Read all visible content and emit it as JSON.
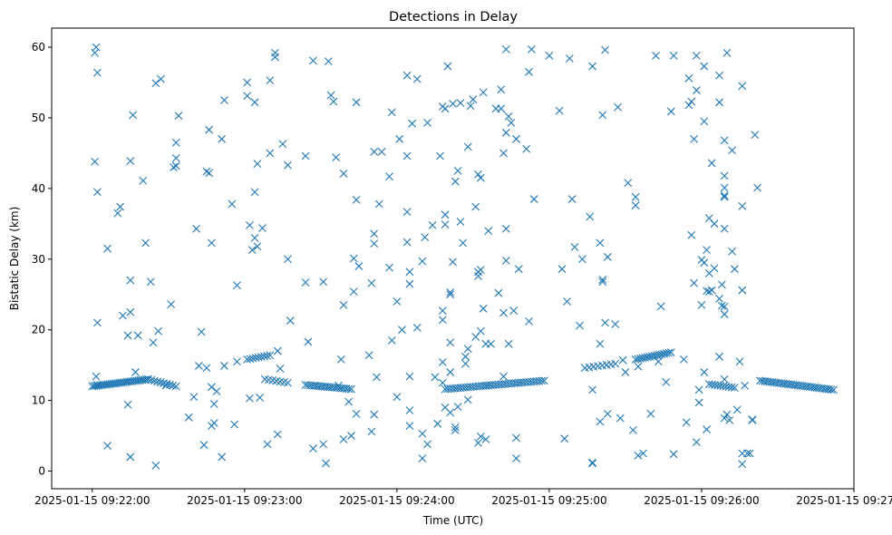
{
  "chart_data": {
    "type": "scatter",
    "title": "Detections in Delay",
    "xlabel": "Time (UTC)",
    "ylabel": "Bistatic Delay (km)",
    "marker": "x",
    "color": "#1f77b4",
    "xlim_seconds": [
      -16,
      300
    ],
    "ylim": [
      -2.5,
      62.7
    ],
    "x_ticks": [
      {
        "value": 0,
        "label": "2025-01-15 09:22:00"
      },
      {
        "value": 60,
        "label": "2025-01-15 09:23:00"
      },
      {
        "value": 120,
        "label": "2025-01-15 09:24:00"
      },
      {
        "value": 180,
        "label": "2025-01-15 09:25:00"
      },
      {
        "value": 240,
        "label": "2025-01-15 09:26:00"
      },
      {
        "value": 300,
        "label": "2025-01-15 09:27:00"
      }
    ],
    "y_ticks": [
      {
        "value": 0,
        "label": "0"
      },
      {
        "value": 10,
        "label": "10"
      },
      {
        "value": 20,
        "label": "20"
      },
      {
        "value": 30,
        "label": "30"
      },
      {
        "value": 40,
        "label": "40"
      },
      {
        "value": 50,
        "label": "50"
      },
      {
        "value": 60,
        "label": "60"
      }
    ],
    "x_unit": "seconds after 2025-01-15 09:22:00 UTC",
    "tracks": [
      {
        "name": "track-1",
        "t_start": 0,
        "t_end": 22,
        "y_start": 12.0,
        "y_end": 13.0,
        "count": 30
      },
      {
        "name": "track-2",
        "t_start": 22,
        "t_end": 33,
        "y_start": 13.0,
        "y_end": 12.0,
        "count": 10
      },
      {
        "name": "track-3",
        "t_start": 61,
        "t_end": 70,
        "y_start": 15.8,
        "y_end": 16.4,
        "count": 9
      },
      {
        "name": "track-4",
        "t_start": 68,
        "t_end": 77,
        "y_start": 13.0,
        "y_end": 12.5,
        "count": 7
      },
      {
        "name": "track-5",
        "t_start": 84,
        "t_end": 102,
        "y_start": 12.2,
        "y_end": 11.6,
        "count": 20
      },
      {
        "name": "track-6",
        "t_start": 139,
        "t_end": 178,
        "y_start": 11.6,
        "y_end": 12.8,
        "count": 40
      },
      {
        "name": "track-7",
        "t_start": 194,
        "t_end": 206,
        "y_start": 14.6,
        "y_end": 15.2,
        "count": 8
      },
      {
        "name": "track-8",
        "t_start": 214,
        "t_end": 228,
        "y_start": 15.8,
        "y_end": 16.8,
        "count": 16
      },
      {
        "name": "track-9",
        "t_start": 243,
        "t_end": 253,
        "y_start": 12.3,
        "y_end": 11.8,
        "count": 10
      },
      {
        "name": "track-10",
        "t_start": 263,
        "t_end": 292,
        "y_start": 12.8,
        "y_end": 11.5,
        "count": 32
      }
    ],
    "points": [
      [
        1,
        59.2
      ],
      [
        1.5,
        60
      ],
      [
        2,
        56.4
      ],
      [
        1,
        43.8
      ],
      [
        2,
        39.5
      ],
      [
        2,
        21
      ],
      [
        1.5,
        13.4
      ],
      [
        2,
        12.2
      ],
      [
        6,
        31.5
      ],
      [
        6,
        3.6
      ],
      [
        10,
        36.5
      ],
      [
        11,
        37.4
      ],
      [
        12,
        22
      ],
      [
        14,
        19.2
      ],
      [
        15,
        22.5
      ],
      [
        15,
        27
      ],
      [
        15,
        43.9
      ],
      [
        16,
        50.4
      ],
      [
        15,
        2
      ],
      [
        14,
        9.4
      ],
      [
        17,
        14
      ],
      [
        18,
        19.2
      ],
      [
        20,
        41.1
      ],
      [
        21,
        32.3
      ],
      [
        23,
        26.8
      ],
      [
        24,
        18.2
      ],
      [
        25,
        0.8
      ],
      [
        25,
        54.9
      ],
      [
        26,
        19.8
      ],
      [
        27,
        55.5
      ],
      [
        29,
        12.1
      ],
      [
        31,
        23.6
      ],
      [
        32,
        43
      ],
      [
        33,
        43.2
      ],
      [
        33,
        44.3
      ],
      [
        33,
        46.5
      ],
      [
        34,
        50.3
      ],
      [
        38,
        7.6
      ],
      [
        40,
        10.5
      ],
      [
        41,
        34.3
      ],
      [
        42,
        14.9
      ],
      [
        43,
        19.7
      ],
      [
        44,
        3.7
      ],
      [
        45,
        14.6
      ],
      [
        45,
        42.4
      ],
      [
        46,
        48.3
      ],
      [
        46,
        42.2
      ],
      [
        47,
        11.9
      ],
      [
        47,
        32.3
      ],
      [
        47,
        6.4
      ],
      [
        48,
        6.8
      ],
      [
        48,
        9.5
      ],
      [
        49,
        11.3
      ],
      [
        51,
        47
      ],
      [
        51,
        2
      ],
      [
        52,
        52.5
      ],
      [
        52,
        14.9
      ],
      [
        55,
        37.8
      ],
      [
        56,
        6.6
      ],
      [
        57,
        26.3
      ],
      [
        57,
        15.5
      ],
      [
        61,
        55
      ],
      [
        61,
        53.1
      ],
      [
        62,
        34.8
      ],
      [
        62,
        10.3
      ],
      [
        63,
        31.3
      ],
      [
        64,
        52.2
      ],
      [
        64,
        33
      ],
      [
        64,
        39.5
      ],
      [
        65,
        43.5
      ],
      [
        65,
        31.8
      ],
      [
        66,
        10.4
      ],
      [
        67,
        34.4
      ],
      [
        69,
        3.8
      ],
      [
        70,
        55.3
      ],
      [
        70,
        45
      ],
      [
        72,
        58.6
      ],
      [
        72,
        59.2
      ],
      [
        73,
        5.2
      ],
      [
        73,
        17
      ],
      [
        74,
        14.5
      ],
      [
        75,
        46.3
      ],
      [
        77,
        43.3
      ],
      [
        77,
        30
      ],
      [
        78,
        21.3
      ],
      [
        84,
        44.6
      ],
      [
        84,
        26.7
      ],
      [
        85,
        18.3
      ],
      [
        87,
        58.1
      ],
      [
        87,
        3.2
      ],
      [
        91,
        26.8
      ],
      [
        91,
        3.8
      ],
      [
        92,
        1.1
      ],
      [
        93,
        58
      ],
      [
        94,
        53.2
      ],
      [
        95,
        52.3
      ],
      [
        96,
        44.4
      ],
      [
        97,
        12.1
      ],
      [
        98,
        15.8
      ],
      [
        99,
        23.5
      ],
      [
        99,
        42.1
      ],
      [
        99,
        4.5
      ],
      [
        101,
        9.8
      ],
      [
        102,
        5
      ],
      [
        103,
        30.1
      ],
      [
        103,
        25.4
      ],
      [
        104,
        8.1
      ],
      [
        104,
        52.2
      ],
      [
        104,
        38.4
      ],
      [
        105,
        29
      ],
      [
        109,
        16.4
      ],
      [
        110,
        26.6
      ],
      [
        110,
        5.6
      ],
      [
        111,
        45.2
      ],
      [
        111,
        33.6
      ],
      [
        111,
        8
      ],
      [
        111,
        32.2
      ],
      [
        112,
        13.3
      ],
      [
        113,
        37.8
      ],
      [
        114,
        45.2
      ],
      [
        117,
        41.7
      ],
      [
        117,
        28.8
      ],
      [
        118,
        50.8
      ],
      [
        118,
        18.5
      ],
      [
        120,
        10.5
      ],
      [
        120,
        24
      ],
      [
        121,
        47
      ],
      [
        122,
        20
      ],
      [
        124,
        56
      ],
      [
        124,
        36.7
      ],
      [
        124,
        32.4
      ],
      [
        124,
        44.6
      ],
      [
        125,
        28.2
      ],
      [
        125,
        6.4
      ],
      [
        125,
        26.5
      ],
      [
        125,
        8.6
      ],
      [
        125,
        13.4
      ],
      [
        126,
        49.2
      ],
      [
        128,
        55.5
      ],
      [
        128,
        20.3
      ],
      [
        130,
        29.7
      ],
      [
        130,
        5.3
      ],
      [
        130,
        1.8
      ],
      [
        131,
        33.1
      ],
      [
        132,
        49.3
      ],
      [
        132,
        3.8
      ],
      [
        134,
        34.8
      ],
      [
        135,
        13.3
      ],
      [
        136,
        6.7
      ],
      [
        137,
        44.6
      ],
      [
        138,
        51.6
      ],
      [
        138,
        21.4
      ],
      [
        138,
        22.7
      ],
      [
        138,
        15.4
      ],
      [
        138,
        12.5
      ],
      [
        139,
        9
      ],
      [
        139,
        34.9
      ],
      [
        139,
        36.3
      ],
      [
        139,
        51.3
      ],
      [
        140,
        57.3
      ],
      [
        141,
        25.3
      ],
      [
        141,
        25
      ],
      [
        141,
        14
      ],
      [
        141,
        18.2
      ],
      [
        141,
        8.3
      ],
      [
        142,
        52
      ],
      [
        142,
        29.6
      ],
      [
        143,
        6.2
      ],
      [
        143,
        5.8
      ],
      [
        143,
        41
      ],
      [
        144,
        42.5
      ],
      [
        144,
        9.1
      ],
      [
        145,
        35.3
      ],
      [
        145,
        52.1
      ],
      [
        146,
        32.3
      ],
      [
        147,
        15.2
      ],
      [
        147,
        16.2
      ],
      [
        148,
        17.3
      ],
      [
        148,
        45.9
      ],
      [
        148,
        10.1
      ],
      [
        149,
        51.7
      ],
      [
        150,
        52.6
      ],
      [
        151,
        37.4
      ],
      [
        151,
        19
      ],
      [
        152,
        42
      ],
      [
        152,
        28.2
      ],
      [
        152,
        27.6
      ],
      [
        152,
        4
      ],
      [
        153,
        41.5
      ],
      [
        153,
        28.5
      ],
      [
        153,
        4.9
      ],
      [
        153,
        19.8
      ],
      [
        154,
        53.6
      ],
      [
        154,
        23
      ],
      [
        155,
        12.1
      ],
      [
        155,
        4.5
      ],
      [
        155,
        18
      ],
      [
        156,
        34
      ],
      [
        157,
        18
      ],
      [
        159,
        51.3
      ],
      [
        160,
        25.2
      ],
      [
        161,
        54
      ],
      [
        161,
        51.3
      ],
      [
        162,
        22.4
      ],
      [
        162,
        45
      ],
      [
        162,
        13.4
      ],
      [
        163,
        59.7
      ],
      [
        163,
        47.9
      ],
      [
        163,
        34.3
      ],
      [
        163,
        29.8
      ],
      [
        164,
        50.2
      ],
      [
        164,
        18
      ],
      [
        165,
        49.3
      ],
      [
        166,
        22.7
      ],
      [
        167,
        47
      ],
      [
        167,
        4.7
      ],
      [
        167,
        1.8
      ],
      [
        168,
        28.6
      ],
      [
        171,
        45.6
      ],
      [
        172,
        56.5
      ],
      [
        172,
        21.2
      ],
      [
        173,
        59.7
      ],
      [
        174,
        38.5
      ],
      [
        180,
        58.8
      ],
      [
        184,
        51
      ],
      [
        185,
        28.6
      ],
      [
        186,
        4.6
      ],
      [
        187,
        24
      ],
      [
        188,
        58.4
      ],
      [
        189,
        38.5
      ],
      [
        190,
        31.7
      ],
      [
        192,
        20.6
      ],
      [
        193,
        30
      ],
      [
        196,
        36
      ],
      [
        197,
        57.3
      ],
      [
        197,
        11.5
      ],
      [
        197,
        1.2
      ],
      [
        197,
        1.1
      ],
      [
        200,
        32.3
      ],
      [
        200,
        18
      ],
      [
        200,
        7
      ],
      [
        201,
        50.4
      ],
      [
        201,
        26.8
      ],
      [
        201,
        27.1
      ],
      [
        202,
        59.6
      ],
      [
        202,
        21
      ],
      [
        203,
        30.3
      ],
      [
        203,
        8.1
      ],
      [
        206,
        20.8
      ],
      [
        207,
        51.5
      ],
      [
        208,
        7.5
      ],
      [
        209,
        15.7
      ],
      [
        210,
        14
      ],
      [
        211,
        40.8
      ],
      [
        213,
        5.8
      ],
      [
        214,
        38.8
      ],
      [
        214,
        37.6
      ],
      [
        215,
        14.8
      ],
      [
        215,
        2.2
      ],
      [
        217,
        2.5
      ],
      [
        220,
        8.1
      ],
      [
        222,
        58.8
      ],
      [
        223,
        15.5
      ],
      [
        224,
        23.3
      ],
      [
        226,
        12.6
      ],
      [
        228,
        50.9
      ],
      [
        229,
        58.8
      ],
      [
        229,
        2.4
      ],
      [
        233,
        15.8
      ],
      [
        234,
        6.9
      ],
      [
        235,
        51.8
      ],
      [
        235,
        55.6
      ],
      [
        236,
        33.4
      ],
      [
        236,
        52.3
      ],
      [
        237,
        47
      ],
      [
        237,
        26.6
      ],
      [
        238,
        53.9
      ],
      [
        238,
        58.8
      ],
      [
        238,
        4.1
      ],
      [
        239,
        9.7
      ],
      [
        239,
        11.5
      ],
      [
        240,
        23.5
      ],
      [
        240,
        29.9
      ],
      [
        241,
        49.5
      ],
      [
        241,
        57.3
      ],
      [
        241,
        29.5
      ],
      [
        241,
        14
      ],
      [
        242,
        25.5
      ],
      [
        242,
        31.3
      ],
      [
        242,
        5.9
      ],
      [
        243,
        35.8
      ],
      [
        243,
        28
      ],
      [
        243,
        25.4
      ],
      [
        244,
        43.6
      ],
      [
        244,
        25.6
      ],
      [
        245,
        35
      ],
      [
        245,
        28.7
      ],
      [
        247,
        56
      ],
      [
        247,
        52.2
      ],
      [
        247,
        24.4
      ],
      [
        247,
        16.2
      ],
      [
        248,
        23.4
      ],
      [
        248,
        26.4
      ],
      [
        249,
        41.8
      ],
      [
        249,
        46.8
      ],
      [
        249,
        38.8
      ],
      [
        249,
        40.1
      ],
      [
        249,
        39
      ],
      [
        249,
        34.3
      ],
      [
        249,
        23.3
      ],
      [
        249,
        22.2
      ],
      [
        249,
        13
      ],
      [
        249,
        7.5
      ],
      [
        250,
        59.2
      ],
      [
        250,
        8
      ],
      [
        251,
        7.2
      ],
      [
        252,
        45.4
      ],
      [
        252,
        31.1
      ],
      [
        253,
        28.6
      ],
      [
        254,
        8.7
      ],
      [
        255,
        15.5
      ],
      [
        256,
        54.5
      ],
      [
        256,
        25.6
      ],
      [
        256,
        37.5
      ],
      [
        256,
        1
      ],
      [
        256,
        2.5
      ],
      [
        257,
        12.1
      ],
      [
        258,
        2.5
      ],
      [
        259,
        2.5
      ],
      [
        260,
        7.3
      ],
      [
        260,
        7.2
      ],
      [
        261,
        47.6
      ],
      [
        262,
        40.1
      ]
    ]
  }
}
